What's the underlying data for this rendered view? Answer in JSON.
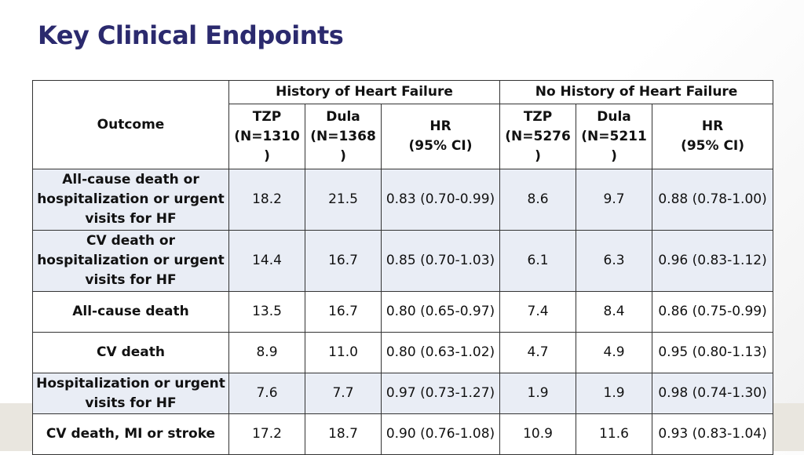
{
  "title": "Key Clinical Endpoints",
  "table": {
    "outcome_header": "Outcome",
    "groups": [
      "History of Heart Failure",
      "No History of Heart Failure"
    ],
    "subheaders": [
      "TZP\n(N=1310\n)",
      "Dula\n(N=1368\n)",
      "HR\n(95% CI)",
      "TZP\n(N=5276\n)",
      "Dula\n(N=5211\n)",
      "HR\n(95% CI)"
    ],
    "rows": [
      {
        "outcome": "All-cause death or hospitalization or urgent visits for HF",
        "cells": [
          "18.2",
          "21.5",
          "0.83 (0.70-0.99)",
          "8.6",
          "9.7",
          "0.88 (0.78-1.00)"
        ]
      },
      {
        "outcome": "CV death or hospitalization or urgent visits for HF",
        "cells": [
          "14.4",
          "16.7",
          "0.85 (0.70-1.03)",
          "6.1",
          "6.3",
          "0.96 (0.83-1.12)"
        ]
      },
      {
        "outcome": "All-cause death",
        "cells": [
          "13.5",
          "16.7",
          "0.80 (0.65-0.97)",
          "7.4",
          "8.4",
          "0.86 (0.75-0.99)"
        ]
      },
      {
        "outcome": "CV death",
        "cells": [
          "8.9",
          "11.0",
          "0.80 (0.63-1.02)",
          "4.7",
          "4.9",
          "0.95 (0.80-1.13)"
        ]
      },
      {
        "outcome": "Hospitalization or urgent visits for HF",
        "cells": [
          "7.6",
          "7.7",
          "0.97 (0.73-1.27)",
          "1.9",
          "1.9",
          "0.98 (0.74-1.30)"
        ]
      },
      {
        "outcome": "CV death, MI or stroke",
        "cells": [
          "17.2",
          "18.7",
          "0.90 (0.76-1.08)",
          "10.9",
          "11.6",
          "0.93 (0.83-1.04)"
        ]
      }
    ]
  }
}
